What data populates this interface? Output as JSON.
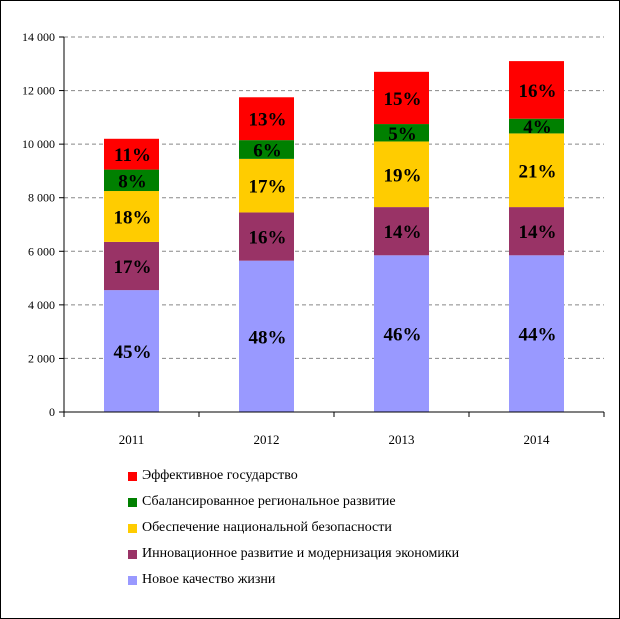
{
  "chart_data": {
    "type": "bar",
    "stacked": true,
    "categories": [
      "2011",
      "2012",
      "2013",
      "2014"
    ],
    "ylim": [
      0,
      14000
    ],
    "yticks": [
      0,
      2000,
      4000,
      6000,
      8000,
      10000,
      12000,
      14000
    ],
    "ytick_labels": [
      "0",
      "2 000",
      "4 000",
      "6 000",
      "8 000",
      "10 000",
      "12 000",
      "14 000"
    ],
    "grid": "dashed horizontal",
    "series": [
      {
        "name": "Новое качество жизни",
        "color": "#9999ff",
        "values": [
          4550,
          5650,
          5850,
          5850
        ],
        "labels": [
          "45%",
          "48%",
          "46%",
          "44%"
        ]
      },
      {
        "name": "Инновационное развитие и модернизация экономики",
        "color": "#993366",
        "values": [
          1800,
          1800,
          1800,
          1800
        ],
        "labels": [
          "17%",
          "16%",
          "14%",
          "14%"
        ]
      },
      {
        "name": "Обеспечение национальной безопасности",
        "color": "#ffcc00",
        "values": [
          1900,
          2000,
          2450,
          2750
        ],
        "labels": [
          "18%",
          "17%",
          "19%",
          "21%"
        ]
      },
      {
        "name": "Сбалансированное региональное развитие",
        "color": "#008000",
        "values": [
          800,
          700,
          650,
          550
        ],
        "labels": [
          "8%",
          "6%",
          "5%",
          "4%"
        ]
      },
      {
        "name": "Эффективное государство",
        "color": "#ff0000",
        "values": [
          1150,
          1600,
          1950,
          2150
        ],
        "labels": [
          "11%",
          "13%",
          "15%",
          "16%"
        ]
      }
    ]
  },
  "legend": {
    "items": [
      {
        "label": "Эффективное государство",
        "color": "#ff0000"
      },
      {
        "label": "Сбалансированное региональное развитие",
        "color": "#008000"
      },
      {
        "label": "Обеспечение национальной безопасности",
        "color": "#ffcc00"
      },
      {
        "label": "Инновационное развитие и модернизация экономики",
        "color": "#993366"
      },
      {
        "label": "Новое качество жизни",
        "color": "#9999ff"
      }
    ]
  }
}
